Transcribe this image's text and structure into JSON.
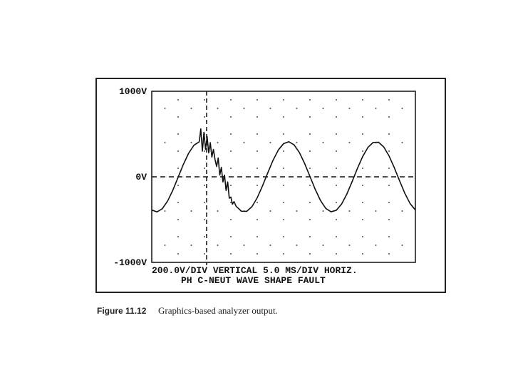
{
  "chart_data": {
    "type": "line",
    "yticks": [
      {
        "value": 1000,
        "label": "1000V"
      },
      {
        "value": 0,
        "label": "0V"
      },
      {
        "value": -1000,
        "label": "-1000V"
      }
    ],
    "ylim": [
      -1000,
      1000
    ],
    "xlim": [
      0,
      50
    ],
    "grid_x": [
      5,
      10,
      15,
      20,
      25,
      30,
      35,
      40,
      45
    ],
    "grid_y": [
      -800,
      -400,
      400,
      800
    ],
    "cursor_x": 10.4,
    "color": "#111111",
    "annotations": [
      "200.0V/DIV VERTICAL   5.0 MS/DIV HORIZ.",
      "PH C-NEUT  WAVE SHAPE FAULT"
    ],
    "caption": {
      "number": "Figure 11.12",
      "text": "Graphics-based analyzer output."
    },
    "x": [
      0,
      1,
      2,
      3,
      4,
      5,
      6,
      7,
      8,
      9,
      9.3,
      9.6,
      9.9,
      10.2,
      10.5,
      10.8,
      11.1,
      11.4,
      11.7,
      12,
      12.3,
      12.6,
      12.9,
      13.2,
      13.5,
      13.8,
      14.1,
      14.4,
      14.7,
      15,
      15.3,
      15.6,
      16,
      17,
      18,
      19,
      20,
      21,
      22,
      23,
      24,
      25,
      26,
      27,
      28,
      29,
      30,
      31,
      32,
      33,
      34,
      35,
      36,
      37,
      38,
      39,
      40,
      41,
      42,
      43,
      44,
      45,
      46,
      47,
      48,
      49,
      50
    ],
    "values": [
      -388,
      -410,
      -373,
      -284,
      -156,
      -5,
      146,
      277,
      369,
      409,
      560,
      300,
      520,
      320,
      470,
      280,
      400,
      230,
      320,
      202,
      120,
      220,
      20,
      110,
      -60,
      20,
      -160,
      -60,
      -250,
      -237,
      -320,
      -290,
      -344,
      -402,
      -404,
      -349,
      -245,
      -107,
      46,
      193,
      313,
      388,
      410,
      373,
      284,
      155,
      5,
      -146,
      -277,
      -369,
      -409,
      -391,
      -319,
      -202,
      -56,
      97,
      237,
      344,
      402,
      404,
      349,
      245,
      107,
      -46,
      -193,
      -313,
      -388
    ]
  }
}
